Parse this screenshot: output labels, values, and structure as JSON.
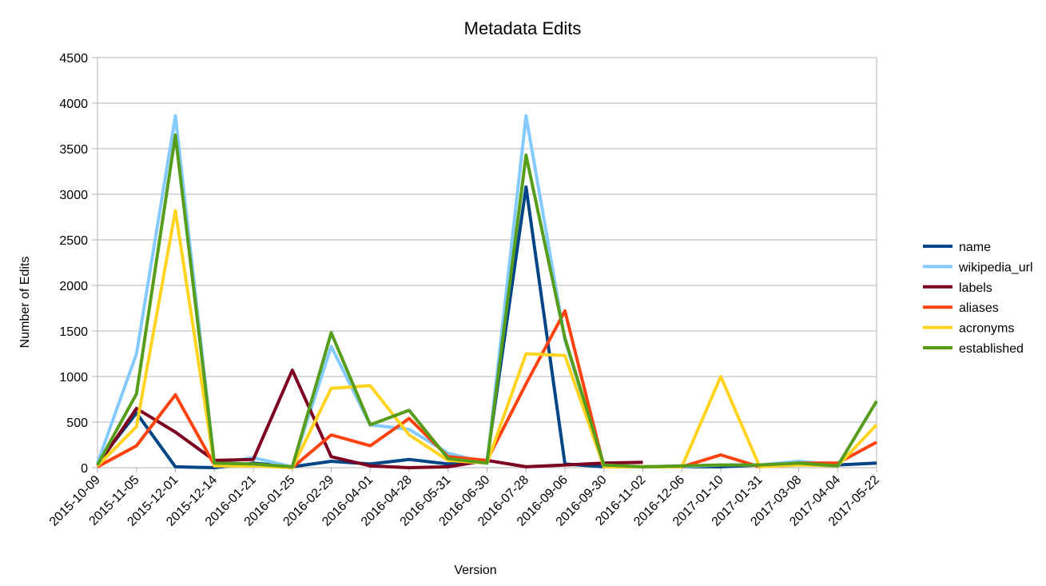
{
  "chart_data": {
    "type": "line",
    "title": "Metadata Edits",
    "xlabel": "Version",
    "ylabel": "Number of Edits",
    "ylim": [
      0,
      4500
    ],
    "yticks": [
      0,
      500,
      1000,
      1500,
      2000,
      2500,
      3000,
      3500,
      4000,
      4500
    ],
    "grid": true,
    "legend_position": "right",
    "categories": [
      "2015-10-09",
      "2015-11-05",
      "2015-12-01",
      "2015-12-14",
      "2016-01-21",
      "2016-01-25",
      "2016-02-29",
      "2016-04-01",
      "2016-04-28",
      "2016-05-31",
      "2016-06-30",
      "2016-07-28",
      "2016-09-06",
      "2016-09-30",
      "2016-11-02",
      "2016-12-06",
      "2017-01-10",
      "2017-01-31",
      "2017-03-08",
      "2017-04-04",
      "2017-05-22"
    ],
    "series": [
      {
        "name": "name",
        "color": "#004586",
        "values": [
          50,
          600,
          10,
          0,
          50,
          10,
          70,
          40,
          90,
          40,
          80,
          3080,
          40,
          10,
          10,
          10,
          10,
          30,
          40,
          30,
          50
        ]
      },
      {
        "name": "wikipedia_url",
        "color": "#83caff",
        "values": [
          50,
          1250,
          3860,
          50,
          110,
          10,
          1330,
          470,
          420,
          160,
          50,
          3860,
          1400,
          10,
          10,
          10,
          30,
          30,
          70,
          30,
          null
        ]
      },
      {
        "name": "labels",
        "color": "#7e0021",
        "values": [
          20,
          650,
          390,
          80,
          90,
          1070,
          120,
          20,
          0,
          10,
          80,
          10,
          30,
          50,
          60,
          null,
          null,
          null,
          null,
          null,
          null
        ]
      },
      {
        "name": "aliases",
        "color": "#ff420e",
        "values": [
          10,
          240,
          800,
          30,
          30,
          0,
          360,
          240,
          540,
          120,
          80,
          920,
          1720,
          10,
          10,
          10,
          140,
          10,
          50,
          50,
          280
        ]
      },
      {
        "name": "acronyms",
        "color": "#ffd320",
        "values": [
          20,
          450,
          2820,
          20,
          20,
          0,
          870,
          900,
          360,
          80,
          50,
          1250,
          1230,
          10,
          10,
          10,
          1000,
          10,
          30,
          20,
          470
        ]
      },
      {
        "name": "established",
        "color": "#579d1c",
        "values": [
          30,
          810,
          3650,
          50,
          40,
          10,
          1480,
          470,
          630,
          100,
          50,
          3430,
          1420,
          30,
          10,
          20,
          30,
          30,
          50,
          20,
          730
        ]
      }
    ]
  }
}
